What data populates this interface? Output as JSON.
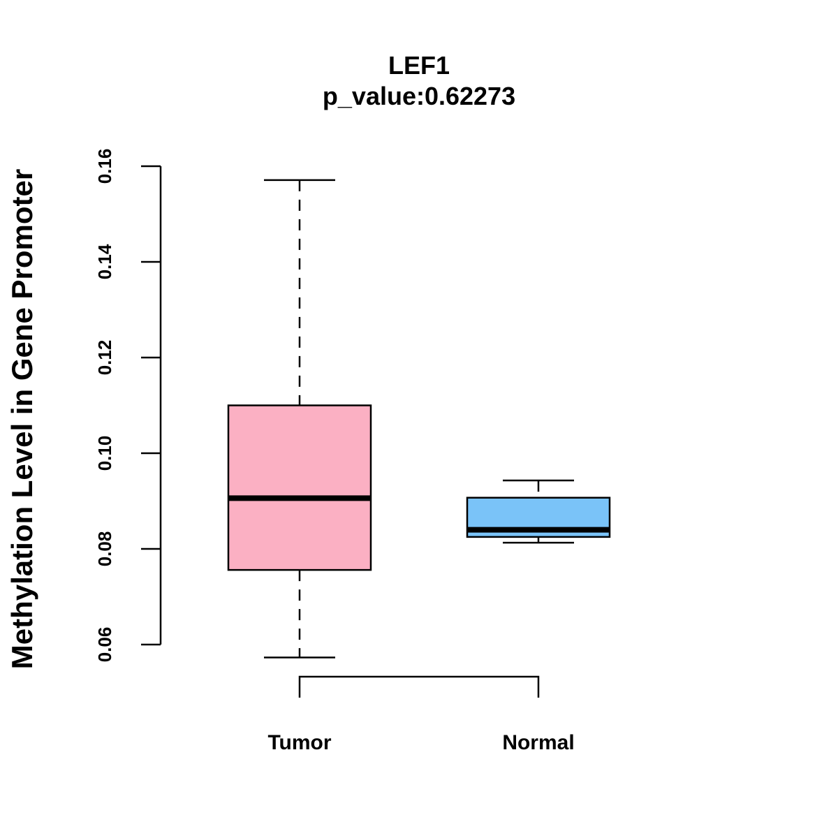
{
  "chart_data": {
    "type": "boxplot",
    "title": "LEF1",
    "subtitle": "p_value:0.62273",
    "xlabel": "",
    "ylabel": "Methylation Level in Gene Promoter",
    "ylim": [
      0.06,
      0.16
    ],
    "yticks": [
      0.06,
      0.08,
      0.1,
      0.12,
      0.14,
      0.16
    ],
    "ytick_labels": [
      "0.06",
      "0.08",
      "0.10",
      "0.12",
      "0.14",
      "0.16"
    ],
    "categories": [
      "Tumor",
      "Normal"
    ],
    "boxes": [
      {
        "name": "Tumor",
        "whisker_low": 0.0573,
        "q1": 0.0756,
        "median": 0.0906,
        "q3": 0.11,
        "whisker_high": 0.1571,
        "color": "#FBB0C3"
      },
      {
        "name": "Normal",
        "whisker_low": 0.0813,
        "q1": 0.0825,
        "median": 0.084,
        "q3": 0.0907,
        "whisker_high": 0.0943,
        "color": "#7AC3F8"
      }
    ],
    "grid": false,
    "significance_bracket": true
  }
}
